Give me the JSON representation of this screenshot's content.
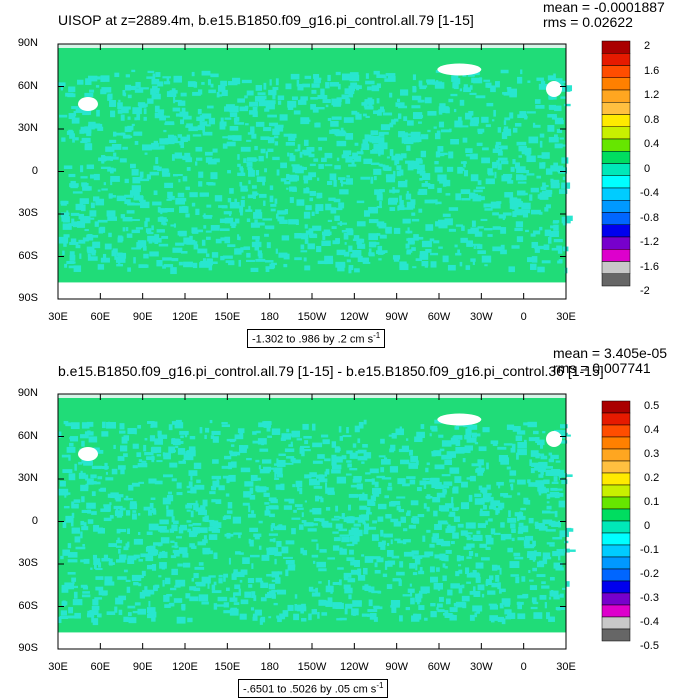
{
  "panels": [
    {
      "title": "UISOP at z=2889.4m, b.e15.B1850.f09_g16.pi_control.all.79 [1-15]",
      "mean": "mean = -0.0001887",
      "rms": "rms = 0.02622",
      "range": "-1.302 to .986 by .2 cm s",
      "range_exp": "-1",
      "colorbar_labels": [
        "2",
        "1.6",
        "1.2",
        "0.8",
        "0.4",
        "0",
        "-0.4",
        "-0.8",
        "-1.2",
        "-1.6",
        "-2"
      ]
    },
    {
      "title": "b.e15.B1850.f09_g16.pi_control.all.79 [1-15] - b.e15.B1850.f09_g16.pi_control.36 [1-15]",
      "mean": "mean = 3.405e-05",
      "rms": "rms = 0.007741",
      "range": "-.6501 to .5026 by .05 cm s",
      "range_exp": "-1",
      "colorbar_labels": [
        "0.5",
        "0.4",
        "0.3",
        "0.2",
        "0.1",
        "0",
        "-0.1",
        "-0.2",
        "-0.3",
        "-0.4",
        "-0.5"
      ]
    }
  ],
  "lat_labels": [
    "90N",
    "60N",
    "30N",
    "0",
    "30S",
    "60S",
    "90S"
  ],
  "lon_labels": [
    "30E",
    "60E",
    "90E",
    "120E",
    "150E",
    "180",
    "150W",
    "120W",
    "90W",
    "60W",
    "30W",
    "0",
    "30E"
  ],
  "colorbar_colors": [
    "#aa0000",
    "#e61a00",
    "#ff4d00",
    "#ff8000",
    "#ffa620",
    "#ffc040",
    "#ffea00",
    "#c8f000",
    "#66e600",
    "#00dd60",
    "#00e8b8",
    "#00ffff",
    "#00ccff",
    "#0099ff",
    "#0066ff",
    "#0000ee",
    "#7700cc",
    "#dd00cc",
    "#c8c8c8",
    "#666666"
  ],
  "colors": {
    "field_green": "#20dc78",
    "field_cyan": "#28e6cf",
    "land_white": "#ffffff"
  }
}
